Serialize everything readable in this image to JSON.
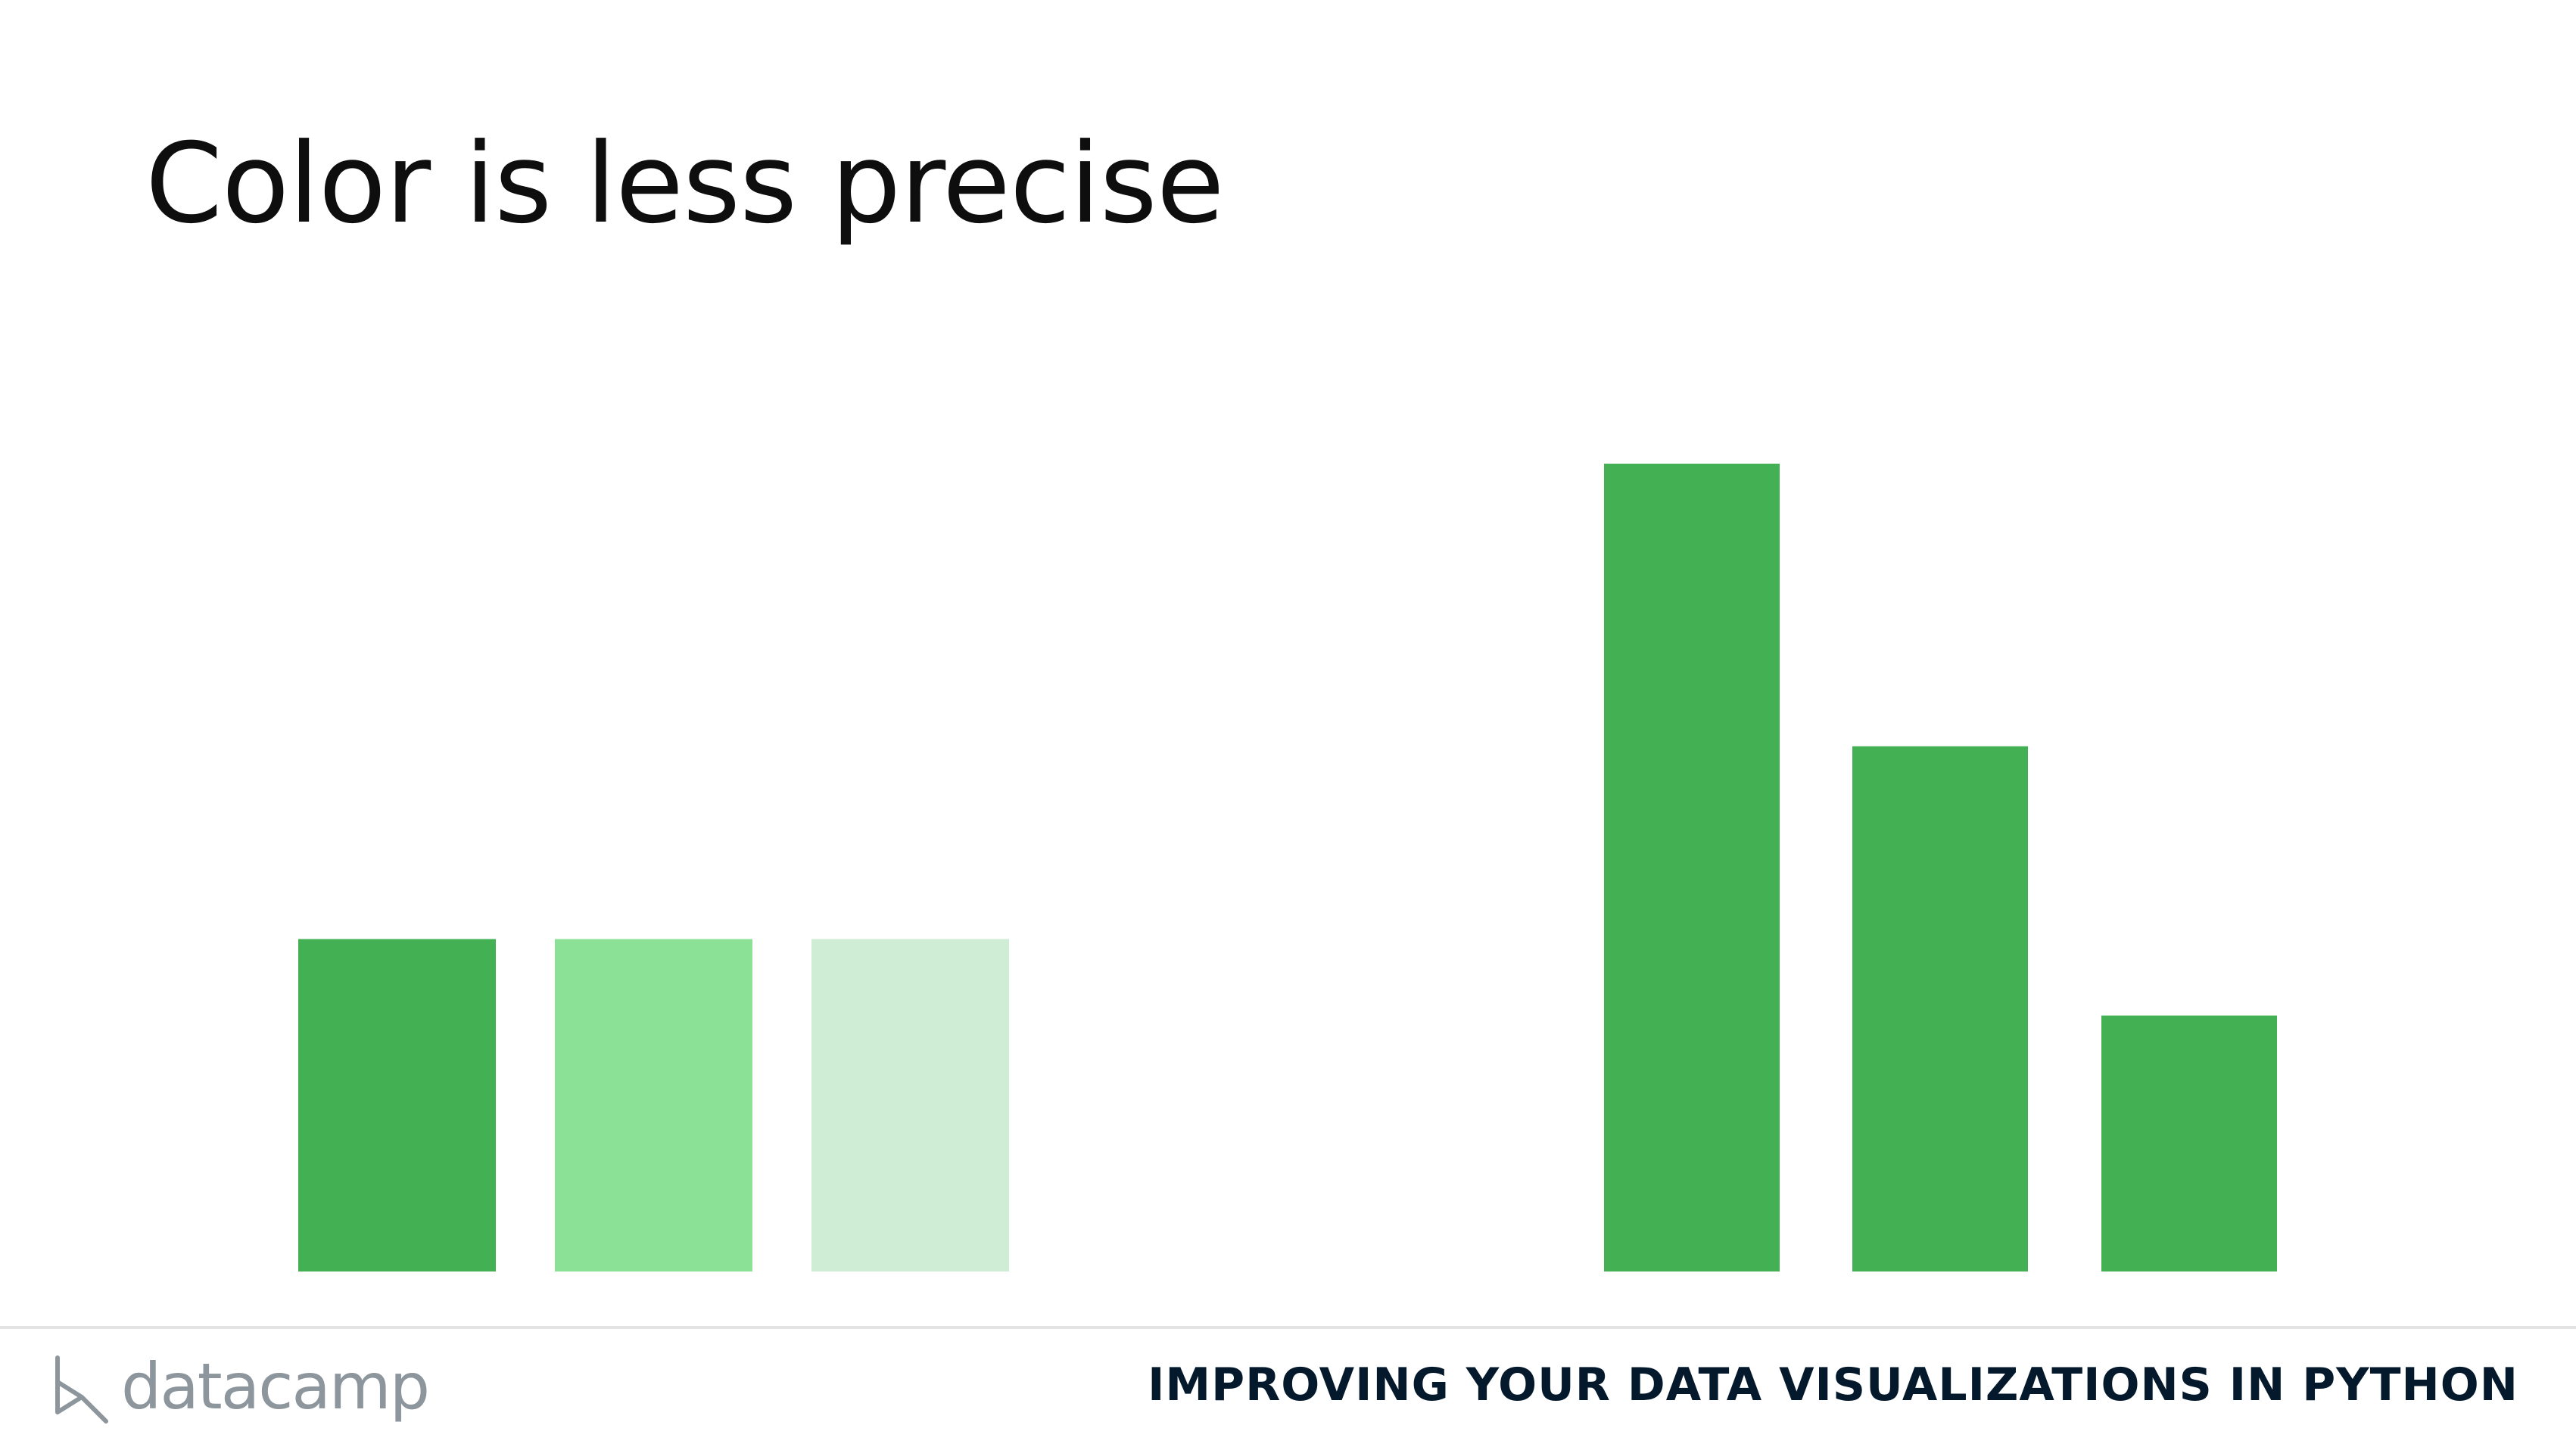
{
  "slide": {
    "title": "Color is less precise"
  },
  "footer": {
    "logo_text": "datacamp",
    "course_title": "IMPROVING YOUR DATA VISUALIZATIONS IN PYTHON"
  },
  "colors": {
    "bar_green": "#43b053",
    "bar_light_green": "#8be296",
    "bar_pale_green": "#cfedd4",
    "title_text": "#0e0e0e",
    "logo_gray": "#8c969c",
    "course_title_navy": "#05192d"
  },
  "chart_data": [
    {
      "type": "bar",
      "encoding": "color",
      "categories": [
        "",
        "",
        ""
      ],
      "values": [
        1,
        1,
        1
      ],
      "bar_colors": [
        "#43b053",
        "#8be296",
        "#cfedd4"
      ],
      "ylim": [
        0,
        2.43
      ],
      "axes_visible": false,
      "grid": false,
      "title": "",
      "xlabel": "",
      "ylabel": ""
    },
    {
      "type": "bar",
      "encoding": "height",
      "categories": [
        "",
        "",
        ""
      ],
      "values": [
        2.43,
        1.58,
        0.77
      ],
      "bar_colors": [
        "#43b053",
        "#43b053",
        "#43b053"
      ],
      "ylim": [
        0,
        2.43
      ],
      "axes_visible": false,
      "grid": false,
      "title": "",
      "xlabel": "",
      "ylabel": ""
    }
  ]
}
